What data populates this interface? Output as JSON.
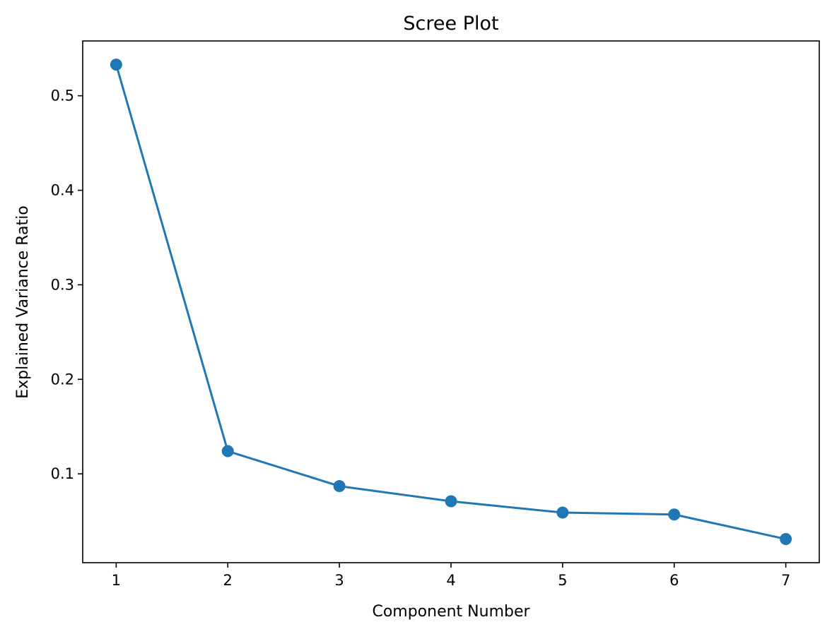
{
  "chart_data": {
    "type": "line",
    "title": "Scree Plot",
    "xlabel": "Component Number",
    "ylabel": "Explained Variance Ratio",
    "x": [
      1,
      2,
      3,
      4,
      5,
      6,
      7
    ],
    "series": [
      {
        "values": [
          0.533,
          0.124,
          0.087,
          0.071,
          0.059,
          0.057,
          0.031
        ],
        "color": "#1f77b4",
        "marker": "circle"
      }
    ],
    "xticks": [
      "1",
      "2",
      "3",
      "4",
      "5",
      "6",
      "7"
    ],
    "yticks": [
      "0.1",
      "0.2",
      "0.3",
      "0.4",
      "0.5"
    ],
    "xlim": [
      0.7,
      7.3
    ],
    "ylim": [
      0.006,
      0.558
    ],
    "grid": false,
    "legend": false
  }
}
